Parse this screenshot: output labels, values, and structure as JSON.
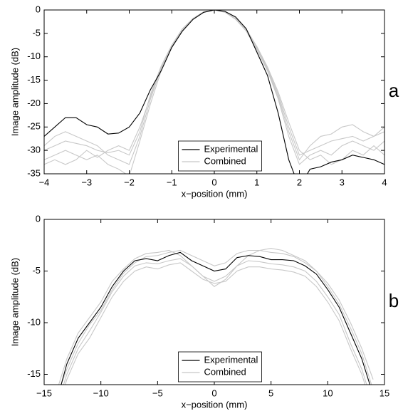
{
  "chart_data": [
    {
      "type": "line",
      "label": "a",
      "xlabel": "x−position (mm)",
      "ylabel": "Image amplitude (dB)",
      "x": [
        -4,
        -3.75,
        -3.5,
        -3.25,
        -3,
        -2.75,
        -2.5,
        -2.25,
        -2,
        -1.75,
        -1.5,
        -1.25,
        -1,
        -0.75,
        -0.5,
        -0.25,
        0,
        0.25,
        0.5,
        0.75,
        1,
        1.25,
        1.5,
        1.75,
        2,
        2.25,
        2.5,
        2.75,
        3,
        3.25,
        3.5,
        3.75,
        4
      ],
      "xlim": [
        -4,
        4
      ],
      "xticks": [
        {
          "value": -4,
          "label": "−4"
        },
        {
          "value": -3,
          "label": "−3"
        },
        {
          "value": -2,
          "label": "−2"
        },
        {
          "value": -1,
          "label": "−1"
        },
        0,
        1,
        2,
        3,
        4
      ],
      "ylim": [
        -35,
        0
      ],
      "yticks": [
        0,
        -5,
        -10,
        -15,
        -20,
        -25,
        -30,
        -35
      ],
      "legend": "lower center",
      "series": [
        {
          "color": "#c8c8c8",
          "name": "Combined",
          "values": [
            -30,
            -29,
            -28,
            -28.5,
            -29,
            -30,
            -30.5,
            -30,
            -31,
            -26,
            -18,
            -12,
            -7.5,
            -4,
            -1.8,
            -0.4,
            0,
            -0.4,
            -1.8,
            -4.2,
            -8,
            -12.5,
            -18,
            -25,
            -31,
            -30,
            -29,
            -28,
            -27.5,
            -27,
            -28,
            -27,
            -26
          ]
        },
        {
          "color": "#c8c8c8",
          "values": [
            -32,
            -31,
            -30,
            -31,
            -32,
            -31,
            -33,
            -34,
            -35.5,
            -28,
            -20,
            -13,
            -8,
            -4.5,
            -2,
            -0.5,
            0,
            -0.5,
            -2,
            -4.5,
            -8.5,
            -13,
            -19,
            -27,
            -33,
            -31,
            -30,
            -31,
            -29,
            -28,
            -29,
            -30,
            -28
          ]
        },
        {
          "color": "#c8c8c8",
          "values": [
            -29,
            -27,
            -26,
            -27,
            -28,
            -29,
            -31,
            -32,
            -33,
            -27,
            -19,
            -12.5,
            -7.8,
            -4.2,
            -1.9,
            -0.45,
            0,
            -0.45,
            -1.9,
            -4.3,
            -8.2,
            -12.8,
            -18.5,
            -26,
            -32,
            -29,
            -27,
            -26.5,
            -25,
            -24.5,
            -26,
            -27,
            -25
          ]
        },
        {
          "color": "#c8c8c8",
          "values": [
            -33,
            -32,
            -33,
            -32,
            -30,
            -31.5,
            -30,
            -29,
            -30,
            -25,
            -18.5,
            -12.2,
            -7.6,
            -4.1,
            -1.8,
            -0.4,
            0,
            -0.4,
            -1.8,
            -4.1,
            -7.8,
            -12.2,
            -17.5,
            -24,
            -30,
            -32,
            -31,
            -33,
            -32,
            -30,
            -31,
            -29,
            -31
          ]
        },
        {
          "color": "#000000",
          "name": "Experimental",
          "values": [
            -27,
            -25,
            -23,
            -23,
            -24.5,
            -25,
            -26.5,
            -26.3,
            -25,
            -22,
            -17,
            -13,
            -8,
            -4.5,
            -2,
            -0.5,
            0,
            -0.3,
            -1.5,
            -4,
            -9,
            -14,
            -22,
            -32,
            -38,
            -34,
            -33.5,
            -32.5,
            -32,
            -31,
            -31.5,
            -32,
            -33
          ]
        }
      ]
    },
    {
      "type": "line",
      "label": "b",
      "xlabel": "x−position (mm)",
      "ylabel": "Image amplitude (dB)",
      "x": [
        -15,
        -14,
        -13,
        -12,
        -11,
        -10,
        -9,
        -8,
        -7,
        -6,
        -5,
        -4,
        -3,
        -2,
        -1,
        0,
        1,
        2,
        3,
        4,
        5,
        6,
        7,
        8,
        9,
        10,
        11,
        12,
        13,
        14,
        15
      ],
      "xlim": [
        -15,
        15
      ],
      "xticks": [
        {
          "value": -15,
          "label": "−15"
        },
        {
          "value": -10,
          "label": "−10"
        },
        {
          "value": -5,
          "label": "−5"
        },
        0,
        5,
        10,
        15
      ],
      "ylim": [
        -16,
        0
      ],
      "yticks": [
        0,
        -5,
        -10,
        -15
      ],
      "legend": "lower center",
      "series": [
        {
          "color": "#c8c8c8",
          "name": "Combined",
          "values": [
            null,
            -17,
            -13.5,
            -11,
            -9.5,
            -8,
            -6,
            -4.8,
            -3.8,
            -3.3,
            -3.2,
            -3,
            -3.5,
            -4.5,
            -5.5,
            -6,
            -5.5,
            -4.5,
            -3.5,
            -3,
            -2.8,
            -3,
            -3.5,
            -4,
            -5,
            -6.5,
            -8.2,
            -10.5,
            -13,
            -16.5,
            null
          ]
        },
        {
          "color": "#c8c8c8",
          "values": [
            null,
            -18.5,
            -15,
            -12.5,
            -10.8,
            -9,
            -7,
            -5.5,
            -4.5,
            -4.2,
            -4.3,
            -4,
            -3.8,
            -4.5,
            -5.5,
            -6.5,
            -5.8,
            -4.5,
            -4,
            -4.1,
            -4.3,
            -4.4,
            -4.6,
            -5,
            -6,
            -7.5,
            -9.2,
            -12,
            -14.5,
            -18,
            null
          ]
        },
        {
          "color": "#c8c8c8",
          "values": [
            null,
            -17.5,
            -14.5,
            -12,
            -10.2,
            -8.8,
            -6.8,
            -5.2,
            -4.2,
            -3.6,
            -3.5,
            -3.2,
            -3,
            -3.5,
            -4,
            -4.5,
            -4.2,
            -3.3,
            -3,
            -3,
            -3.2,
            -3.3,
            -3.6,
            -4.2,
            -5,
            -6.2,
            -7.8,
            -10,
            -12.5,
            -15.5,
            null
          ]
        },
        {
          "color": "#c8c8c8",
          "values": [
            null,
            -19,
            -15.5,
            -13,
            -11.5,
            -9.5,
            -7.5,
            -6,
            -5,
            -4.6,
            -4.8,
            -4.4,
            -4.2,
            -5,
            -5.8,
            -6.2,
            -6,
            -5,
            -4.6,
            -4.6,
            -4.8,
            -4.9,
            -5.1,
            -5.5,
            -6.5,
            -8,
            -9.8,
            -12.5,
            -15,
            -18.5,
            null
          ]
        },
        {
          "color": "#000000",
          "name": "Experimental",
          "values": [
            null,
            -18,
            -14,
            -11.5,
            -10,
            -8.5,
            -6.5,
            -5,
            -4,
            -3.8,
            -4,
            -3.5,
            -3.2,
            -4,
            -4.5,
            -5,
            -4.8,
            -3.7,
            -3.5,
            -3.6,
            -3.9,
            -3.9,
            -4,
            -4.5,
            -5.3,
            -6.8,
            -8.5,
            -11,
            -13.5,
            -17,
            null
          ]
        }
      ]
    }
  ]
}
